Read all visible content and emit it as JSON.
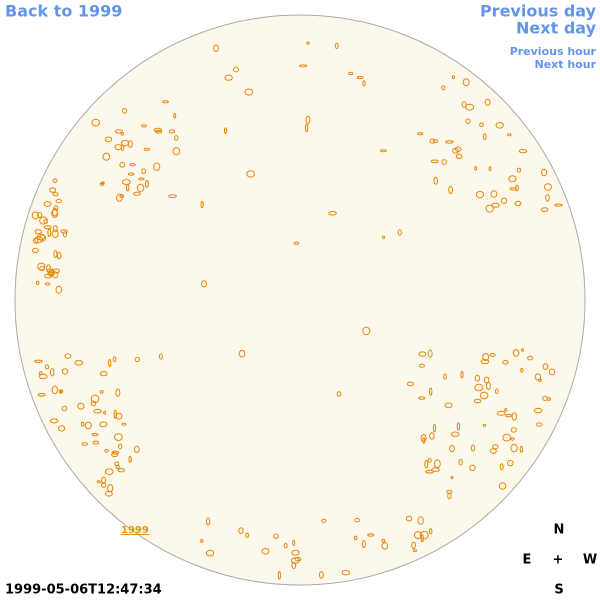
{
  "navigation": {
    "back": "Back to 1999",
    "previous_day": "Previous day",
    "next_day": "Next day",
    "previous_hour": "Previous hour",
    "next_hour": "Next hour"
  },
  "disk": {
    "year_label": "1999"
  },
  "compass": {
    "north": "N",
    "east": "E",
    "center": "+",
    "west": "W",
    "south": "S"
  },
  "timestamp": "1999-05-06T12:47:34"
}
